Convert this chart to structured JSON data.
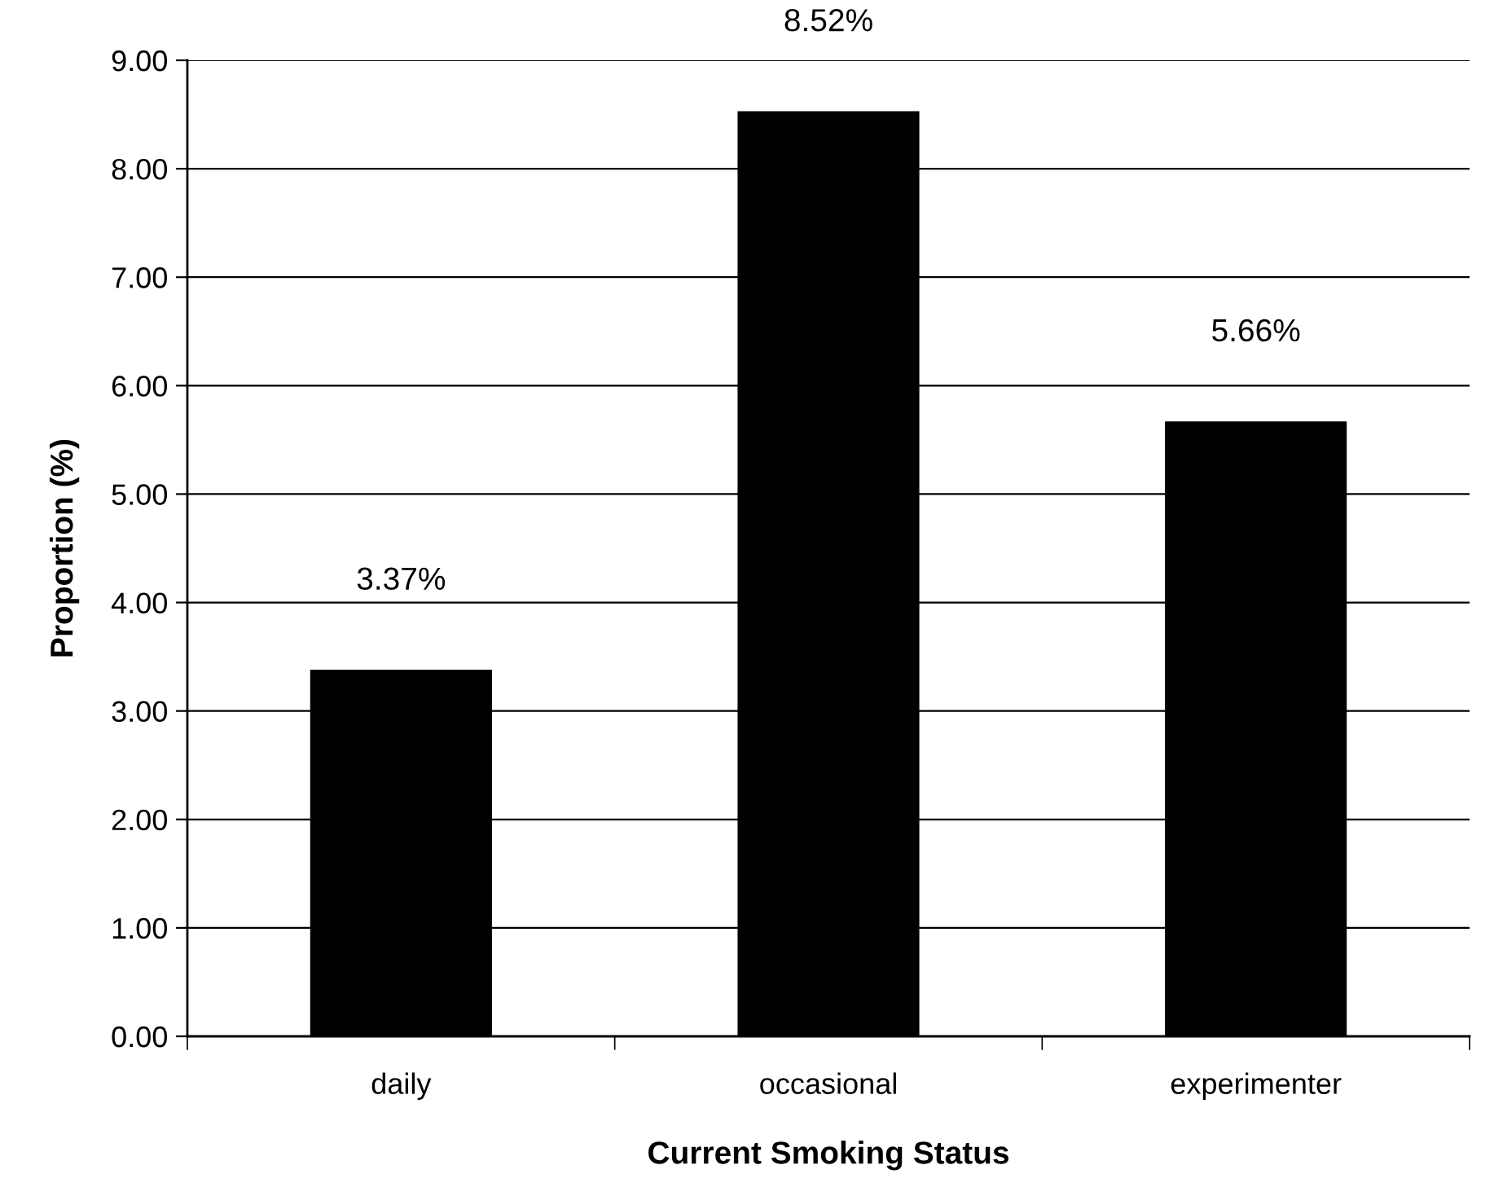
{
  "chart_data": {
    "type": "bar",
    "xlabel": "Current Smoking Status",
    "ylabel": "Proportion (%)",
    "categories": [
      "daily",
      "occasional",
      "experimenter"
    ],
    "values": [
      3.37,
      8.52,
      5.66
    ],
    "color": "#000000",
    "value_labels": [
      "3.37%",
      "8.52%",
      "5.66%"
    ],
    "ylim": [
      0,
      9
    ],
    "yticks": [
      {
        "value": 0,
        "label": "0.00"
      },
      {
        "value": 1,
        "label": "1.00"
      },
      {
        "value": 2,
        "label": "2.00"
      },
      {
        "value": 3,
        "label": "3.00"
      },
      {
        "value": 4,
        "label": "4.00"
      },
      {
        "value": 5,
        "label": "5.00"
      },
      {
        "value": 6,
        "label": "6.00"
      },
      {
        "value": 7,
        "label": "7.00"
      },
      {
        "value": 8,
        "label": "8.00"
      },
      {
        "value": 9,
        "label": "9.00"
      }
    ],
    "grid": "y",
    "legend": false
  }
}
